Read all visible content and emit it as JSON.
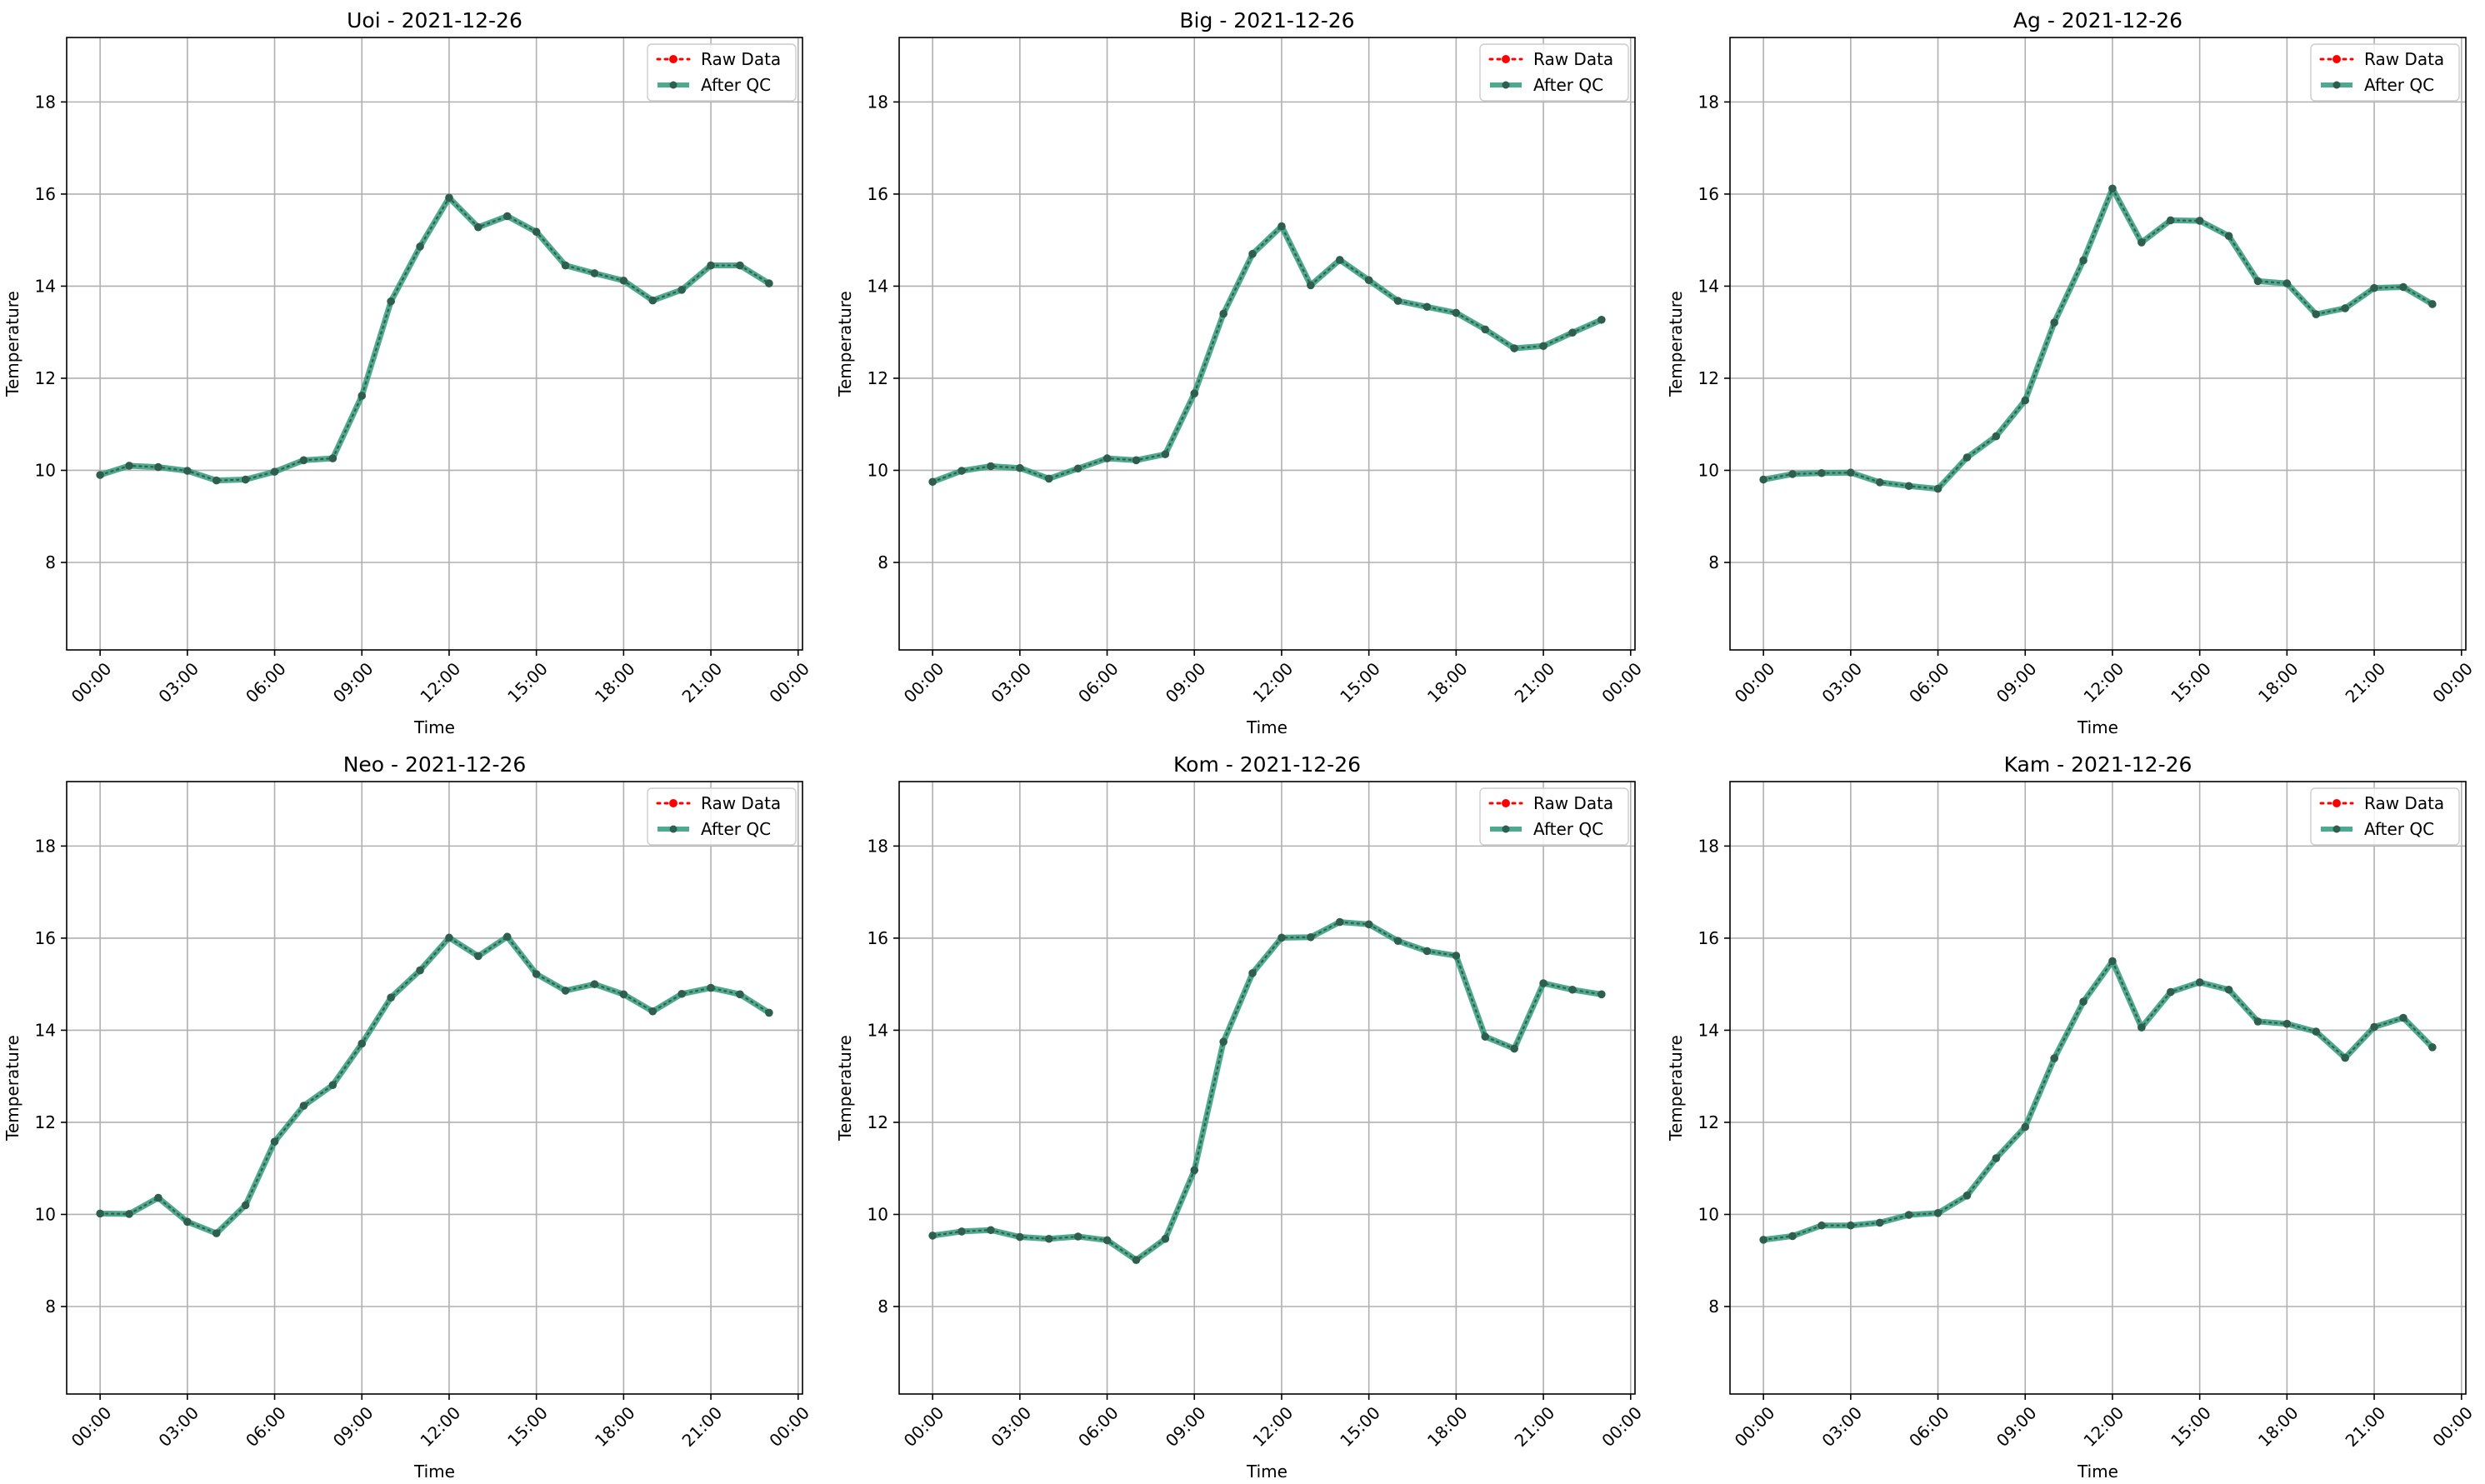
{
  "figure": {
    "x_tick_labels": [
      "00:00",
      "03:00",
      "06:00",
      "09:00",
      "12:00",
      "15:00",
      "18:00",
      "21:00",
      "00:00"
    ],
    "y_tick_labels": [
      "8",
      "10",
      "12",
      "14",
      "16",
      "18"
    ],
    "legend": {
      "raw_label": "Raw Data",
      "qc_label": "After QC",
      "placement": "top-right"
    },
    "colors": {
      "raw": "#ff0000",
      "qc": "#2e9b7a",
      "marker": "#2e5e4e",
      "grid": "#b0b0b0"
    }
  },
  "chart_data": [
    {
      "type": "line",
      "title": "Uoi - 2021-12-26",
      "xlabel": "Time",
      "ylabel": "Temperature",
      "ylim": [
        6.1,
        19.4
      ],
      "xlim_hours": [
        -1.15,
        24.15
      ],
      "grid": true,
      "x_hours": [
        0,
        1,
        2,
        3,
        4,
        5,
        6,
        7,
        8,
        9,
        10,
        11,
        12,
        13,
        14,
        15,
        16,
        17,
        18,
        19,
        20,
        21,
        22,
        23
      ],
      "series": [
        {
          "name": "Raw Data",
          "style": "dotted",
          "values": [
            9.9,
            10.1,
            10.07,
            9.99,
            9.78,
            9.8,
            9.97,
            10.22,
            10.26,
            11.62,
            13.67,
            14.86,
            15.92,
            15.28,
            15.52,
            15.18,
            14.45,
            14.28,
            14.12,
            13.69,
            13.92,
            14.45,
            14.45,
            14.06
          ]
        },
        {
          "name": "After QC",
          "style": "solid",
          "values": [
            9.9,
            10.1,
            10.07,
            9.99,
            9.78,
            9.8,
            9.97,
            10.22,
            10.26,
            11.62,
            13.67,
            14.86,
            15.92,
            15.28,
            15.52,
            15.18,
            14.45,
            14.28,
            14.12,
            13.69,
            13.92,
            14.45,
            14.45,
            14.06
          ]
        }
      ]
    },
    {
      "type": "line",
      "title": "Big - 2021-12-26",
      "xlabel": "Time",
      "ylabel": "Temperature",
      "ylim": [
        6.1,
        19.4
      ],
      "xlim_hours": [
        -1.15,
        24.15
      ],
      "grid": true,
      "x_hours": [
        0,
        1,
        2,
        3,
        4,
        5,
        6,
        7,
        8,
        9,
        10,
        11,
        12,
        13,
        14,
        15,
        16,
        17,
        18,
        19,
        20,
        21,
        22,
        23
      ],
      "series": [
        {
          "name": "Raw Data",
          "style": "dotted",
          "values": [
            9.75,
            9.99,
            10.09,
            10.05,
            9.82,
            10.04,
            10.26,
            10.22,
            10.35,
            11.67,
            13.4,
            14.7,
            15.3,
            14.02,
            14.57,
            14.13,
            13.68,
            13.55,
            13.42,
            13.06,
            12.65,
            12.7,
            12.99,
            13.27
          ]
        },
        {
          "name": "After QC",
          "style": "solid",
          "values": [
            9.75,
            9.99,
            10.09,
            10.05,
            9.82,
            10.04,
            10.26,
            10.22,
            10.35,
            11.67,
            13.4,
            14.7,
            15.3,
            14.02,
            14.57,
            14.13,
            13.68,
            13.55,
            13.42,
            13.06,
            12.65,
            12.7,
            12.99,
            13.27
          ]
        }
      ]
    },
    {
      "type": "line",
      "title": "Ag - 2021-12-26",
      "xlabel": "Time",
      "ylabel": "Temperature",
      "ylim": [
        6.1,
        19.4
      ],
      "xlim_hours": [
        -1.15,
        24.15
      ],
      "grid": true,
      "x_hours": [
        0,
        1,
        2,
        3,
        4,
        5,
        6,
        7,
        8,
        9,
        10,
        11,
        12,
        13,
        14,
        15,
        16,
        17,
        18,
        19,
        20,
        21,
        22,
        23
      ],
      "series": [
        {
          "name": "Raw Data",
          "style": "dotted",
          "values": [
            9.8,
            9.92,
            9.94,
            9.95,
            9.74,
            9.66,
            9.6,
            10.28,
            10.74,
            11.52,
            13.21,
            14.56,
            16.12,
            14.95,
            15.43,
            15.42,
            15.09,
            14.11,
            14.06,
            13.39,
            13.52,
            13.96,
            13.98,
            13.61
          ]
        },
        {
          "name": "After QC",
          "style": "solid",
          "values": [
            9.8,
            9.92,
            9.94,
            9.95,
            9.74,
            9.66,
            9.6,
            10.28,
            10.74,
            11.52,
            13.21,
            14.56,
            16.12,
            14.95,
            15.43,
            15.42,
            15.09,
            14.11,
            14.06,
            13.39,
            13.52,
            13.96,
            13.98,
            13.61
          ]
        }
      ]
    },
    {
      "type": "line",
      "title": "Neo - 2021-12-26",
      "xlabel": "Time",
      "ylabel": "Temperature",
      "ylim": [
        6.1,
        19.4
      ],
      "xlim_hours": [
        -1.15,
        24.15
      ],
      "grid": true,
      "x_hours": [
        0,
        1,
        2,
        3,
        4,
        5,
        6,
        7,
        8,
        9,
        10,
        11,
        12,
        13,
        14,
        15,
        16,
        17,
        18,
        19,
        20,
        21,
        22,
        23
      ],
      "series": [
        {
          "name": "Raw Data",
          "style": "dotted",
          "values": [
            10.02,
            10.01,
            10.36,
            9.84,
            9.59,
            10.2,
            11.58,
            12.36,
            12.81,
            13.71,
            14.71,
            15.3,
            16.01,
            15.61,
            16.03,
            15.22,
            14.86,
            15.0,
            14.78,
            14.41,
            14.79,
            14.92,
            14.78,
            14.38
          ]
        },
        {
          "name": "After QC",
          "style": "solid",
          "values": [
            10.02,
            10.01,
            10.36,
            9.84,
            9.59,
            10.2,
            11.58,
            12.36,
            12.81,
            13.71,
            14.71,
            15.3,
            16.01,
            15.61,
            16.03,
            15.22,
            14.86,
            15.0,
            14.78,
            14.41,
            14.79,
            14.92,
            14.78,
            14.38
          ]
        }
      ]
    },
    {
      "type": "line",
      "title": "Kom - 2021-12-26",
      "xlabel": "Time",
      "ylabel": "Temperature",
      "ylim": [
        6.1,
        19.4
      ],
      "xlim_hours": [
        -1.15,
        24.15
      ],
      "grid": true,
      "x_hours": [
        0,
        1,
        2,
        3,
        4,
        5,
        6,
        7,
        8,
        9,
        10,
        11,
        12,
        13,
        14,
        15,
        16,
        17,
        18,
        19,
        20,
        21,
        22,
        23
      ],
      "series": [
        {
          "name": "Raw Data",
          "style": "dotted",
          "values": [
            9.54,
            9.63,
            9.66,
            9.51,
            9.47,
            9.52,
            9.44,
            9.01,
            9.47,
            10.96,
            13.75,
            15.24,
            16.01,
            16.02,
            16.35,
            16.3,
            15.94,
            15.72,
            15.62,
            13.86,
            13.6,
            15.02,
            14.88,
            14.78
          ]
        },
        {
          "name": "After QC",
          "style": "solid",
          "values": [
            9.54,
            9.63,
            9.66,
            9.51,
            9.47,
            9.52,
            9.44,
            9.01,
            9.47,
            10.96,
            13.75,
            15.24,
            16.01,
            16.02,
            16.35,
            16.3,
            15.94,
            15.72,
            15.62,
            13.86,
            13.6,
            15.02,
            14.88,
            14.78
          ]
        }
      ]
    },
    {
      "type": "line",
      "title": "Kam - 2021-12-26",
      "xlabel": "Time",
      "ylabel": "Temperature",
      "ylim": [
        6.1,
        19.4
      ],
      "xlim_hours": [
        -1.15,
        24.15
      ],
      "grid": true,
      "x_hours": [
        0,
        1,
        2,
        3,
        4,
        5,
        6,
        7,
        8,
        9,
        10,
        11,
        12,
        13,
        14,
        15,
        16,
        17,
        18,
        19,
        20,
        21,
        22,
        23
      ],
      "series": [
        {
          "name": "Raw Data",
          "style": "dotted",
          "values": [
            9.45,
            9.53,
            9.76,
            9.76,
            9.82,
            9.99,
            10.03,
            10.41,
            11.22,
            11.9,
            13.39,
            14.62,
            15.5,
            14.06,
            14.83,
            15.04,
            14.88,
            14.19,
            14.14,
            13.97,
            13.4,
            14.07,
            14.27,
            13.63
          ]
        },
        {
          "name": "After QC",
          "style": "solid",
          "values": [
            9.45,
            9.53,
            9.76,
            9.76,
            9.82,
            9.99,
            10.03,
            10.41,
            11.22,
            11.9,
            13.39,
            14.62,
            15.5,
            14.06,
            14.83,
            15.04,
            14.88,
            14.19,
            14.14,
            13.97,
            13.4,
            14.07,
            14.27,
            13.63
          ]
        }
      ]
    }
  ]
}
